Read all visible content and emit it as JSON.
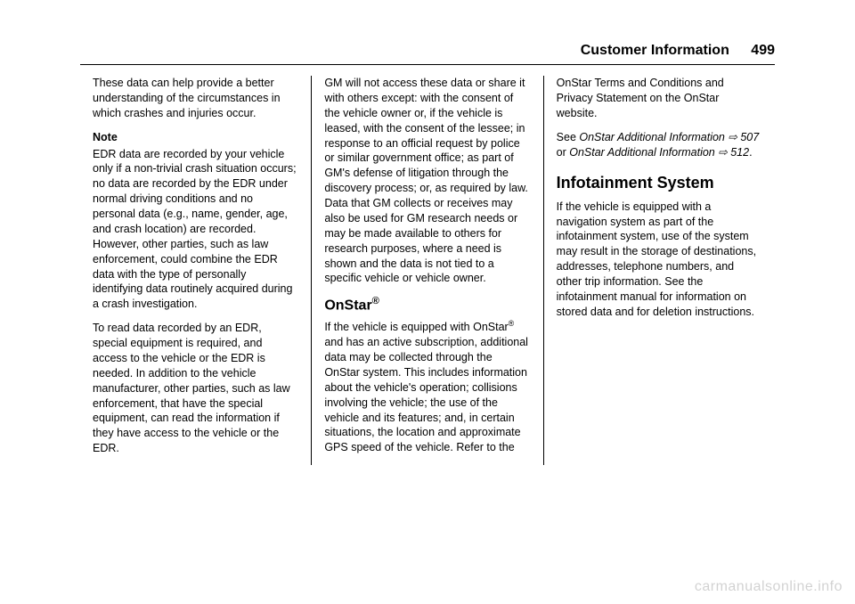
{
  "header": {
    "section": "Customer Information",
    "page": "499"
  },
  "col1": {
    "p1": "These data can help provide a better understanding of the circumstances in which crashes and injuries occur.",
    "note_label": "Note",
    "p2": "EDR data are recorded by your vehicle only if a non-trivial crash situation occurs; no data are recorded by the EDR under normal driving conditions and no personal data (e.g., name, gender, age, and crash location) are recorded. However, other parties, such as law enforcement, could combine the EDR data with the type of personally identifying data routinely acquired during a crash investigation.",
    "p3": "To read data recorded by an EDR, special equipment is required, and access to the vehicle or the EDR is needed. In addition to the vehicle manufacturer, other parties, such as law enforcement, that have the special equipment, can read the information if they have access to the vehicle or the EDR."
  },
  "col2": {
    "p1": "GM will not access these data or share it with others except: with the consent of the vehicle owner or, if the vehicle is leased, with the consent of the lessee; in response to an official request by police or similar government office; as part of GM's defense of litigation through the discovery process; or, as required by law. Data that GM collects or receives may also be used for GM research needs or may be made available to others for research purposes, where a need is shown and the data is not tied to a specific vehicle or vehicle owner.",
    "h_onstar_prefix": "OnStar",
    "h_onstar_reg": "®",
    "p2_a": "If the vehicle is equipped with OnStar",
    "p2_reg": "®",
    "p2_b": " and has an active subscription, additional data may be collected through the OnStar system. This includes information about the vehicle's operation; collisions involving the vehicle; the use of the vehicle and its features; and, in certain situations, the location and approximate GPS speed of the vehicle. Refer to the"
  },
  "col3": {
    "p1": "OnStar Terms and Conditions and Privacy Statement on the OnStar website.",
    "p2_a": "See ",
    "p2_i1": "OnStar Additional Information ",
    "p2_link1": "⇨",
    "p2_i2": " 507",
    "p2_mid": " or ",
    "p2_i3": "OnStar Additional Information ",
    "p2_link2": "⇨",
    "p2_i4": " 512",
    "p2_end": ".",
    "h_info": "Infotainment System",
    "p3": "If the vehicle is equipped with a navigation system as part of the infotainment system, use of the system may result in the storage of destinations, addresses, telephone numbers, and other trip information. See the infotainment manual for information on stored data and for deletion instructions."
  },
  "watermark": "carmanualsonline.info"
}
